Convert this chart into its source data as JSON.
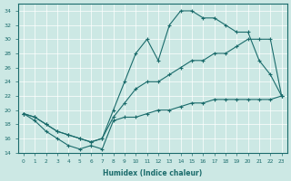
{
  "xlabel": "Humidex (Indice chaleur)",
  "bg_color": "#cce8e4",
  "line_color": "#1a6b6b",
  "grid_color": "#ffffff",
  "xlim": [
    -0.5,
    23.5
  ],
  "ylim": [
    14,
    35
  ],
  "xticks": [
    0,
    1,
    2,
    3,
    4,
    5,
    6,
    7,
    8,
    9,
    10,
    11,
    12,
    13,
    14,
    15,
    16,
    17,
    18,
    19,
    20,
    21,
    22,
    23
  ],
  "yticks": [
    14,
    16,
    18,
    20,
    22,
    24,
    26,
    28,
    30,
    32,
    34
  ],
  "series": [
    {
      "x": [
        0,
        1,
        2,
        3,
        4,
        5,
        6,
        7,
        8,
        9,
        10,
        11,
        12,
        13,
        14,
        15,
        16,
        17,
        18,
        19,
        20,
        21,
        22,
        23
      ],
      "y": [
        19.5,
        19,
        18,
        17,
        16.5,
        16,
        15.5,
        16,
        20,
        24,
        28,
        30,
        27,
        32,
        34,
        34,
        33,
        33,
        32,
        31,
        31,
        27,
        25,
        22
      ]
    },
    {
      "x": [
        0,
        1,
        2,
        3,
        4,
        5,
        6,
        7,
        8,
        9,
        10,
        11,
        12,
        13,
        14,
        15,
        16,
        17,
        18,
        19,
        20,
        21,
        22,
        23
      ],
      "y": [
        19.5,
        19,
        18,
        17,
        16.5,
        16,
        15.5,
        16,
        19,
        21,
        23,
        24,
        24,
        25,
        26,
        27,
        27,
        28,
        28,
        29,
        30,
        30,
        30,
        22
      ]
    },
    {
      "x": [
        0,
        1,
        2,
        3,
        4,
        5,
        6,
        7,
        8,
        9,
        10,
        11,
        12,
        13,
        14,
        15,
        16,
        17,
        18,
        19,
        20,
        21,
        22,
        23
      ],
      "y": [
        19.5,
        18.5,
        17,
        16,
        15,
        14.5,
        15,
        14.5,
        18.5,
        19,
        19,
        19.5,
        20,
        20,
        20.5,
        21,
        21,
        21.5,
        21.5,
        21.5,
        21.5,
        21.5,
        21.5,
        22
      ]
    }
  ]
}
